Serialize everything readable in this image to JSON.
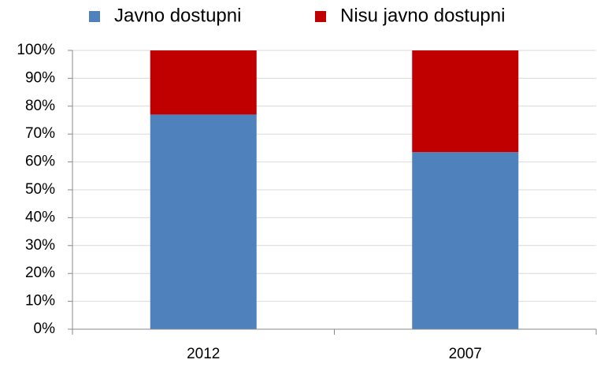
{
  "chart_data": {
    "type": "stacked_bar",
    "categories": [
      "2012",
      "2007"
    ],
    "series": [
      {
        "name": "Javno dostupni",
        "color": "#4f81bd",
        "values": [
          77,
          63.5
        ]
      },
      {
        "name": "Nisu javno dostupni",
        "color": "#c00000",
        "values": [
          23,
          36.5
        ]
      }
    ],
    "ylim": [
      0,
      100
    ],
    "yticks": [
      {
        "value": 0,
        "label": "0%"
      },
      {
        "value": 10,
        "label": "10%"
      },
      {
        "value": 20,
        "label": "20%"
      },
      {
        "value": 30,
        "label": "30%"
      },
      {
        "value": 40,
        "label": "40%"
      },
      {
        "value": 50,
        "label": "50%"
      },
      {
        "value": 60,
        "label": "60%"
      },
      {
        "value": 70,
        "label": "70%"
      },
      {
        "value": 80,
        "label": "80%"
      },
      {
        "value": 90,
        "label": "90%"
      },
      {
        "value": 100,
        "label": "100%"
      }
    ],
    "grid": true,
    "legend": "top"
  }
}
